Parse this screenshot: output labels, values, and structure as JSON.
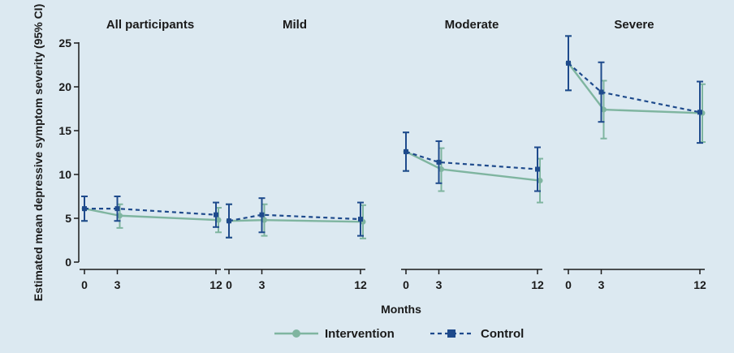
{
  "chart_data": {
    "type": "line",
    "ylabel": "Estimated mean depressive symptom severity (95% CI)",
    "xlabel": "Months",
    "ylim": [
      0,
      25
    ],
    "yticks": [
      0,
      5,
      10,
      15,
      20,
      25
    ],
    "xlim": [
      0,
      12
    ],
    "xticks": [
      0,
      3,
      12
    ],
    "grid": false,
    "legend_position": "bottom-center",
    "colors": {
      "intervention": "#7fb5a0",
      "control": "#1e4a8c",
      "background": "#dce9f1",
      "axis": "#1a1a1a"
    },
    "series_names": [
      "Intervention",
      "Control"
    ],
    "panels": [
      {
        "title": "All participants",
        "series": [
          {
            "name": "Intervention",
            "x": [
              0,
              3,
              12
            ],
            "y": [
              6.1,
              5.3,
              4.8
            ],
            "lower": [
              4.7,
              3.9,
              3.4
            ],
            "upper": [
              7.5,
              6.6,
              6.2
            ]
          },
          {
            "name": "Control",
            "x": [
              0,
              3,
              12
            ],
            "y": [
              6.1,
              6.1,
              5.4
            ],
            "lower": [
              4.7,
              4.7,
              4.0
            ],
            "upper": [
              7.5,
              7.5,
              6.8
            ]
          }
        ]
      },
      {
        "title": "Mild",
        "series": [
          {
            "name": "Intervention",
            "x": [
              0,
              3,
              12
            ],
            "y": [
              4.7,
              4.8,
              4.6
            ],
            "lower": [
              2.8,
              3.0,
              2.7
            ],
            "upper": [
              6.6,
              6.6,
              6.5
            ]
          },
          {
            "name": "Control",
            "x": [
              0,
              3,
              12
            ],
            "y": [
              4.7,
              5.4,
              4.9
            ],
            "lower": [
              2.8,
              3.4,
              3.0
            ],
            "upper": [
              6.6,
              7.3,
              6.8
            ]
          }
        ]
      },
      {
        "title": "Moderate",
        "series": [
          {
            "name": "Intervention",
            "x": [
              0,
              3,
              12
            ],
            "y": [
              12.6,
              10.6,
              9.3
            ],
            "lower": [
              10.4,
              8.1,
              6.8
            ],
            "upper": [
              14.8,
              13.0,
              11.8
            ]
          },
          {
            "name": "Control",
            "x": [
              0,
              3,
              12
            ],
            "y": [
              12.6,
              11.4,
              10.6
            ],
            "lower": [
              10.4,
              9.0,
              8.1
            ],
            "upper": [
              14.8,
              13.8,
              13.1
            ]
          }
        ]
      },
      {
        "title": "Severe",
        "series": [
          {
            "name": "Intervention",
            "x": [
              0,
              3,
              12
            ],
            "y": [
              22.7,
              17.4,
              17.0
            ],
            "lower": [
              19.6,
              14.1,
              13.7
            ],
            "upper": [
              25.8,
              20.7,
              20.3
            ]
          },
          {
            "name": "Control",
            "x": [
              0,
              3,
              12
            ],
            "y": [
              22.7,
              19.4,
              17.1
            ],
            "lower": [
              19.6,
              16.0,
              13.6
            ],
            "upper": [
              25.8,
              22.8,
              20.6
            ]
          }
        ]
      }
    ]
  }
}
